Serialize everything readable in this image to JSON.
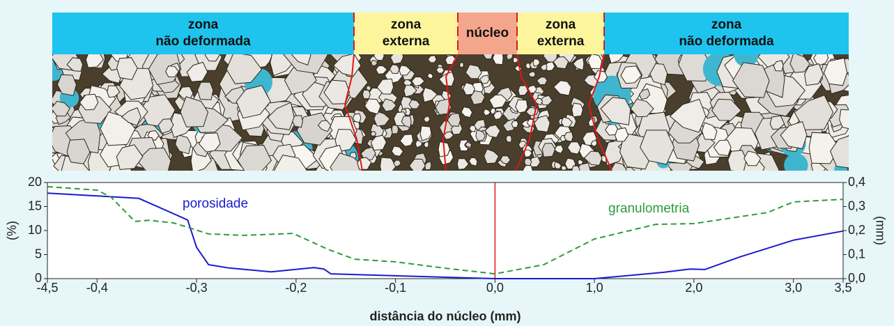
{
  "zones": [
    {
      "lines": [
        "zona",
        "não deformada"
      ]
    },
    {
      "lines": [
        "zona",
        "externa"
      ]
    },
    {
      "lines": [
        "núcleo"
      ]
    },
    {
      "lines": [
        "zona",
        "externa"
      ]
    },
    {
      "lines": [
        "zona",
        "não deformada"
      ]
    }
  ],
  "chart_data": {
    "type": "line",
    "xlabel": "distância do núcleo (mm)",
    "ylabel": "(%)",
    "y2label": "(mm)",
    "xlim": [
      -4.5,
      3.5
    ],
    "xticks": [
      {
        "value": -4.5,
        "label": "-4,5"
      },
      {
        "value": -0.4,
        "label": "-0,4"
      },
      {
        "value": -0.3,
        "label": "-0,3"
      },
      {
        "value": -0.2,
        "label": "-0,2"
      },
      {
        "value": -0.1,
        "label": "-0,1"
      },
      {
        "value": 0,
        "label": "0,0"
      },
      {
        "value": 1,
        "label": "1,0"
      },
      {
        "value": 2,
        "label": "2,0"
      },
      {
        "value": 3,
        "label": "3,0"
      },
      {
        "value": 3.5,
        "label": "3,5"
      }
    ],
    "ylim": [
      0,
      20
    ],
    "yticks": [
      0,
      5,
      10,
      15,
      20
    ],
    "y2lim": [
      0,
      0.4
    ],
    "y2ticks": [
      {
        "value": 0,
        "label": "0,0"
      },
      {
        "value": 0.1,
        "label": "0,1"
      },
      {
        "value": 0.2,
        "label": "0,2"
      },
      {
        "value": 0.3,
        "label": "0,3"
      },
      {
        "value": 0.4,
        "label": "0,4"
      }
    ],
    "series": [
      {
        "name": "porosidade",
        "color": "#1a1ad0",
        "dashed": false,
        "x": [
          -4.5,
          -0.4,
          -0.358,
          -0.309,
          -0.3,
          -0.288,
          -0.267,
          -0.225,
          -0.182,
          -0.172,
          -0.165,
          -0.1,
          0,
          1.0,
          1.69,
          1.96,
          2.11,
          2.46,
          3.0,
          3.5
        ],
        "values": [
          17.8,
          17.2,
          16.7,
          12.2,
          6.5,
          2.9,
          2.2,
          1.4,
          2.3,
          2.0,
          1.0,
          0.6,
          0,
          0,
          1.3,
          2.0,
          1.9,
          4.5,
          8.0,
          9.9
        ]
      },
      {
        "name": "granulometria",
        "color": "#2e9a3a",
        "dashed": true,
        "axis": "y2",
        "x": [
          -4.5,
          -0.4,
          -0.386,
          -0.362,
          -0.348,
          -0.323,
          -0.288,
          -0.253,
          -0.203,
          -0.168,
          -0.141,
          -0.1,
          -0.049,
          0,
          0.49,
          1.0,
          1.62,
          2.0,
          2.74,
          3.0,
          3.5
        ],
        "values": [
          0.383,
          0.368,
          0.339,
          0.238,
          0.243,
          0.232,
          0.186,
          0.18,
          0.188,
          0.122,
          0.081,
          0.07,
          0.043,
          0.02,
          0.058,
          0.165,
          0.226,
          0.229,
          0.275,
          0.319,
          0.33
        ]
      }
    ]
  }
}
